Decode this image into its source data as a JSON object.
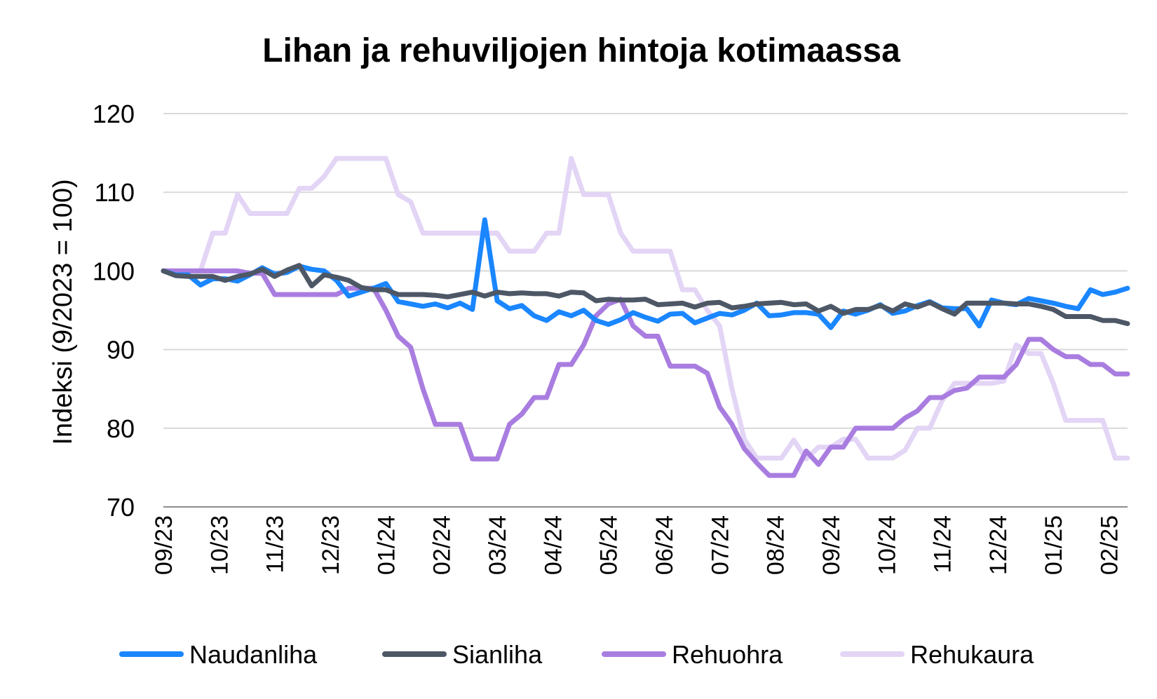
{
  "chart_data": {
    "type": "line",
    "title": "Lihan ja rehuviljojen hintoja kotimaassa",
    "xlabel": "",
    "ylabel": "Indeksi (9/2023 = 100)",
    "ylim": [
      70,
      120
    ],
    "yticks": [
      70,
      80,
      90,
      100,
      110,
      120
    ],
    "grid": true,
    "legend_position": "bottom",
    "x_tick_labels": [
      "09/23",
      "10/23",
      "11/23",
      "12/23",
      "01/24",
      "02/24",
      "03/24",
      "04/24",
      "05/24",
      "06/24",
      "07/24",
      "08/24",
      "09/24",
      "10/24",
      "11/24",
      "12/24",
      "01/25",
      "02/25"
    ],
    "points_per_month": 4.5,
    "series": [
      {
        "name": "Naudanliha",
        "color": "#1a86ff",
        "values": [
          100,
          99.5,
          99.5,
          98.2,
          99,
          99,
          98.7,
          99.5,
          100.4,
          99.6,
          99.8,
          100.6,
          100.2,
          100,
          98.8,
          96.8,
          97.3,
          97.8,
          98.4,
          96.1,
          95.8,
          95.5,
          95.8,
          95.3,
          95.9,
          95.1,
          106.5,
          96.2,
          95.2,
          95.6,
          94.3,
          93.7,
          94.8,
          94.3,
          95,
          93.7,
          93.2,
          93.8,
          94.7,
          94.1,
          93.6,
          94.5,
          94.6,
          93.4,
          94,
          94.6,
          94.4,
          95,
          95.9,
          94.3,
          94.4,
          94.7,
          94.7,
          94.5,
          92.8,
          94.9,
          94.5,
          95,
          95.7,
          94.6,
          94.9,
          95.6,
          96.1,
          95.3,
          95.2,
          95.2,
          93,
          96.3,
          95.9,
          95.7,
          96.5,
          96.2,
          95.9,
          95.5,
          95.2,
          97.6,
          97,
          97.3,
          97.8
        ]
      },
      {
        "name": "Sianliha",
        "color": "#4d5766",
        "values": [
          100,
          99.4,
          99.3,
          99.3,
          99.3,
          98.8,
          99.3,
          99.6,
          100.2,
          99.3,
          100.1,
          100.7,
          98.1,
          99.5,
          99.2,
          98.8,
          97.9,
          97.6,
          97.6,
          97,
          97,
          97,
          96.9,
          96.7,
          97,
          97.3,
          96.8,
          97.3,
          97.1,
          97.2,
          97.1,
          97.1,
          96.8,
          97.3,
          97.2,
          96.2,
          96.4,
          96.3,
          96.3,
          96.4,
          95.7,
          95.8,
          95.9,
          95.4,
          95.9,
          96,
          95.3,
          95.5,
          95.8,
          95.9,
          96,
          95.7,
          95.8,
          94.9,
          95.5,
          94.6,
          95.1,
          95.1,
          95.6,
          94.9,
          95.8,
          95.4,
          96,
          95.2,
          94.5,
          95.9,
          95.9,
          95.9,
          95.9,
          95.8,
          95.8,
          95.5,
          95.1,
          94.2,
          94.2,
          94.2,
          93.7,
          93.7,
          93.3
        ]
      },
      {
        "name": "Rehuohra",
        "color": "#a97de0",
        "values": [
          100,
          100,
          100,
          100,
          100,
          100,
          100,
          99.7,
          99.7,
          97,
          97,
          97,
          97,
          97,
          97,
          97.8,
          97.8,
          97.8,
          95,
          91.7,
          90.3,
          85,
          80.5,
          80.5,
          80.5,
          76.1,
          76.1,
          76.1,
          80.5,
          81.8,
          83.9,
          83.9,
          88.1,
          88.1,
          90.6,
          94.3,
          95.8,
          96.4,
          93,
          91.7,
          91.7,
          87.9,
          87.9,
          87.9,
          87,
          82.7,
          80.5,
          77.4,
          75.6,
          74,
          74,
          74,
          77.1,
          75.4,
          77.6,
          77.6,
          80,
          80,
          80,
          80,
          81.3,
          82.2,
          83.9,
          83.9,
          84.8,
          85.1,
          86.5,
          86.5,
          86.5,
          88.1,
          91.3,
          91.3,
          90,
          89.1,
          89.1,
          88.1,
          88.1,
          86.9,
          86.9
        ]
      },
      {
        "name": "Rehukaura",
        "color": "#e3d5f5",
        "values": [
          100,
          100,
          100,
          100,
          104.8,
          104.8,
          109.7,
          107.3,
          107.3,
          107.3,
          107.3,
          110.5,
          110.5,
          112,
          114.3,
          114.3,
          114.3,
          114.3,
          114.3,
          109.7,
          108.8,
          104.8,
          104.8,
          104.8,
          104.8,
          104.8,
          104.8,
          104.8,
          102.5,
          102.5,
          102.5,
          104.8,
          104.8,
          114.3,
          109.7,
          109.7,
          109.7,
          104.8,
          102.5,
          102.5,
          102.5,
          102.5,
          97.6,
          97.6,
          95,
          93,
          85,
          78.6,
          76.2,
          76.2,
          76.2,
          78.5,
          76.1,
          77.6,
          77.6,
          78.6,
          78.6,
          76.2,
          76.2,
          76.2,
          77.2,
          80,
          80,
          83.5,
          85.7,
          85.7,
          85.7,
          85.7,
          86,
          90.6,
          89.5,
          89.5,
          85.7,
          81,
          81,
          81,
          81,
          76.2,
          76.2
        ]
      }
    ]
  }
}
